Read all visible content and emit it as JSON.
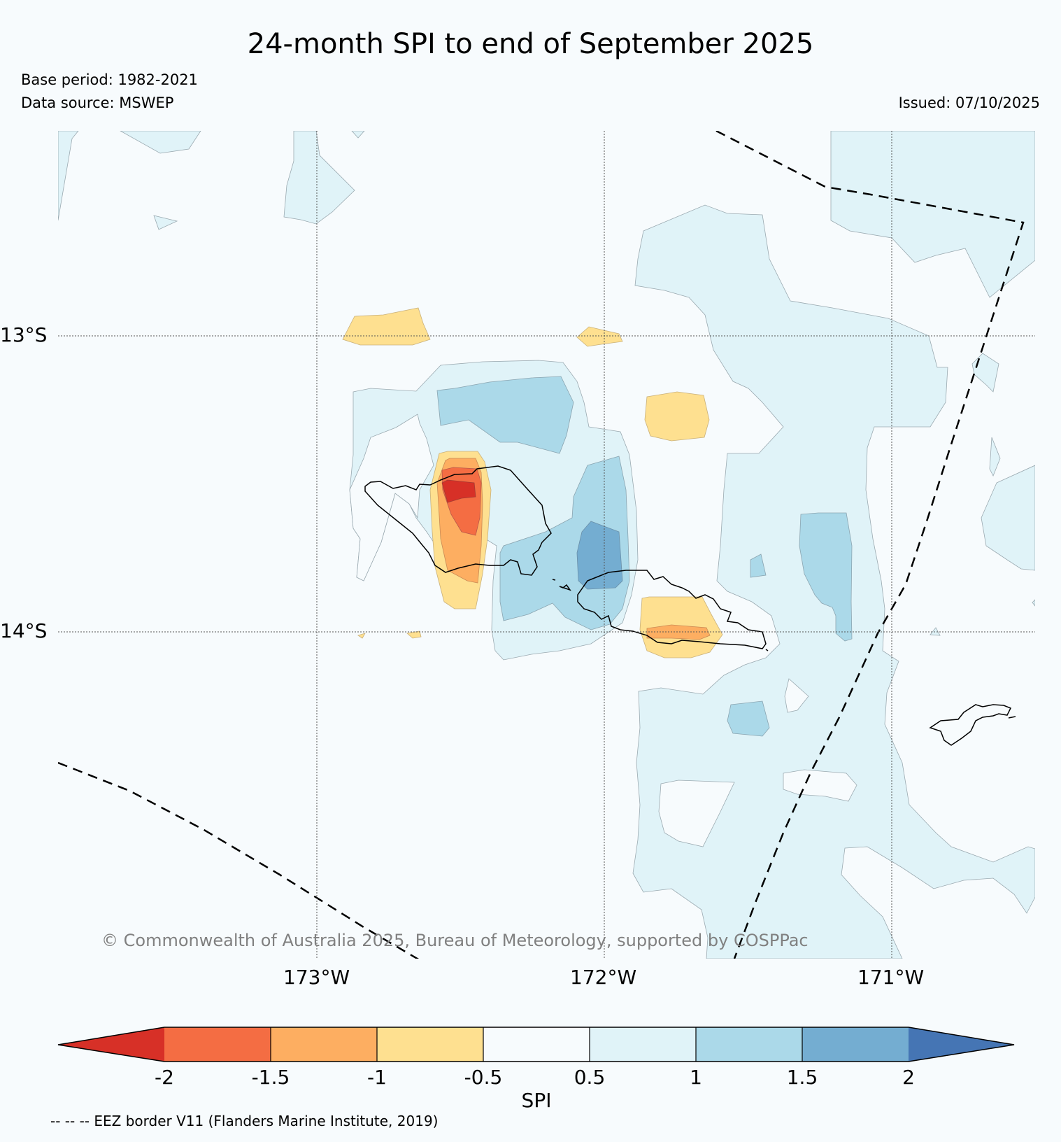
{
  "title": "24-month SPI to end of September 2025",
  "base_period": "Base period: 1982-2021",
  "data_source": "Data source: MSWEP",
  "issued": "Issued: 07/10/2025",
  "lat_labels": [
    "13°S",
    "14°S"
  ],
  "lon_labels": [
    "173°W",
    "172°W",
    "171°W"
  ],
  "copyright": "© Commonwealth of Australia 2025, Bureau of Meteorology, supported by COSPPac",
  "colorbar": {
    "label": "SPI",
    "ticks": [
      "-2",
      "-1.5",
      "-1",
      "-0.5",
      "0.5",
      "1",
      "1.5",
      "2"
    ],
    "colors": [
      "#d73027",
      "#f46d43",
      "#fdae61",
      "#fee090",
      "#f7fbfd",
      "#e0f3f8",
      "#abd9e9",
      "#74add1",
      "#4575b4"
    ]
  },
  "footnote": "-- -- -- EEZ border V11 (Flanders Marine Institute, 2019)"
}
